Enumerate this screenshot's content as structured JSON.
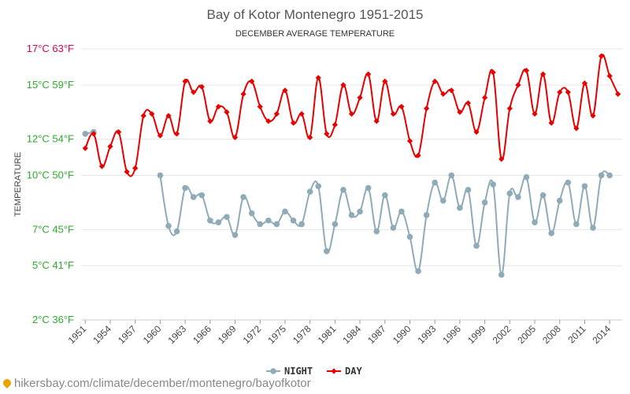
{
  "chart_data": {
    "type": "line",
    "title": "Bay of Kotor Montenegro 1951-2015",
    "subtitle": "DECEMBER AVERAGE TEMPERATURE",
    "ylabel": "TEMPERATURE",
    "ylim": [
      2,
      17
    ],
    "yticks": [
      {
        "value": 2,
        "label": "2°C 36°F",
        "color": "#2eaa2e"
      },
      {
        "value": 5,
        "label": "5°C 41°F",
        "color": "#2eaa2e"
      },
      {
        "value": 7,
        "label": "7°C 45°F",
        "color": "#2eaa2e"
      },
      {
        "value": 10,
        "label": "10°C 50°F",
        "color": "#2eaa2e"
      },
      {
        "value": 12,
        "label": "12°C 54°F",
        "color": "#2eaa2e"
      },
      {
        "value": 15,
        "label": "15°C 59°F",
        "color": "#2eaa2e"
      },
      {
        "value": 17,
        "label": "17°C 63°F",
        "color": "#e0004a"
      }
    ],
    "xlim": [
      1950.5,
      2015.5
    ],
    "xticks": [
      1951,
      1954,
      1957,
      1960,
      1963,
      1966,
      1969,
      1972,
      1975,
      1978,
      1981,
      1984,
      1987,
      1990,
      1993,
      1996,
      1999,
      2002,
      2005,
      2008,
      2011,
      2014
    ],
    "legend_position": "bottom",
    "grid": true,
    "series": [
      {
        "name": "NIGHT",
        "color": "#8fabb8",
        "marker": "circle",
        "points": [
          [
            1951,
            12.3
          ],
          [
            1952,
            12.4
          ],
          [
            1960,
            10.0
          ],
          [
            1961,
            7.2
          ],
          [
            1962,
            6.9
          ],
          [
            1963,
            9.3
          ],
          [
            1964,
            8.8
          ],
          [
            1965,
            8.9
          ],
          [
            1966,
            7.5
          ],
          [
            1967,
            7.4
          ],
          [
            1968,
            7.7
          ],
          [
            1969,
            6.7
          ],
          [
            1970,
            8.8
          ],
          [
            1971,
            7.9
          ],
          [
            1972,
            7.3
          ],
          [
            1973,
            7.5
          ],
          [
            1974,
            7.3
          ],
          [
            1975,
            8.0
          ],
          [
            1976,
            7.5
          ],
          [
            1977,
            7.3
          ],
          [
            1978,
            9.1
          ],
          [
            1979,
            9.4
          ],
          [
            1980,
            5.8
          ],
          [
            1981,
            7.3
          ],
          [
            1982,
            9.2
          ],
          [
            1983,
            7.8
          ],
          [
            1984,
            8.0
          ],
          [
            1985,
            9.3
          ],
          [
            1986,
            6.9
          ],
          [
            1987,
            8.9
          ],
          [
            1988,
            7.1
          ],
          [
            1989,
            8.0
          ],
          [
            1990,
            6.6
          ],
          [
            1991,
            4.7
          ],
          [
            1992,
            7.8
          ],
          [
            1993,
            9.6
          ],
          [
            1994,
            8.6
          ],
          [
            1995,
            10.0
          ],
          [
            1996,
            8.2
          ],
          [
            1997,
            9.2
          ],
          [
            1998,
            6.1
          ],
          [
            1999,
            8.5
          ],
          [
            2000,
            9.5
          ],
          [
            2001,
            4.5
          ],
          [
            2002,
            9.0
          ],
          [
            2003,
            8.8
          ],
          [
            2004,
            9.9
          ],
          [
            2005,
            7.4
          ],
          [
            2006,
            8.9
          ],
          [
            2007,
            6.8
          ],
          [
            2008,
            8.6
          ],
          [
            2009,
            9.6
          ],
          [
            2010,
            7.3
          ],
          [
            2011,
            9.4
          ],
          [
            2012,
            7.1
          ],
          [
            2013,
            10.0
          ],
          [
            2014,
            10.0
          ]
        ]
      },
      {
        "name": "DAY",
        "color": "#e60000",
        "marker": "diamond",
        "points": [
          [
            1951,
            11.5
          ],
          [
            1952,
            12.3
          ],
          [
            1953,
            10.5
          ],
          [
            1954,
            11.6
          ],
          [
            1955,
            12.4
          ],
          [
            1956,
            10.2
          ],
          [
            1957,
            10.4
          ],
          [
            1958,
            13.3
          ],
          [
            1959,
            13.4
          ],
          [
            1960,
            12.2
          ],
          [
            1961,
            13.3
          ],
          [
            1962,
            12.3
          ],
          [
            1963,
            15.2
          ],
          [
            1964,
            14.6
          ],
          [
            1965,
            14.9
          ],
          [
            1966,
            13.0
          ],
          [
            1967,
            13.8
          ],
          [
            1968,
            13.5
          ],
          [
            1969,
            12.1
          ],
          [
            1970,
            14.5
          ],
          [
            1971,
            15.2
          ],
          [
            1972,
            13.8
          ],
          [
            1973,
            13.0
          ],
          [
            1974,
            13.4
          ],
          [
            1975,
            14.7
          ],
          [
            1976,
            12.9
          ],
          [
            1977,
            13.4
          ],
          [
            1978,
            12.1
          ],
          [
            1979,
            15.4
          ],
          [
            1980,
            12.3
          ],
          [
            1981,
            12.8
          ],
          [
            1982,
            15.0
          ],
          [
            1983,
            13.4
          ],
          [
            1984,
            14.3
          ],
          [
            1985,
            15.6
          ],
          [
            1986,
            13.0
          ],
          [
            1987,
            15.2
          ],
          [
            1988,
            13.4
          ],
          [
            1989,
            13.8
          ],
          [
            1990,
            11.9
          ],
          [
            1991,
            11.1
          ],
          [
            1992,
            13.7
          ],
          [
            1993,
            15.2
          ],
          [
            1994,
            14.5
          ],
          [
            1995,
            14.7
          ],
          [
            1996,
            13.5
          ],
          [
            1997,
            14.0
          ],
          [
            1998,
            12.4
          ],
          [
            1999,
            14.3
          ],
          [
            2000,
            15.7
          ],
          [
            2001,
            10.9
          ],
          [
            2002,
            13.7
          ],
          [
            2003,
            15.0
          ],
          [
            2004,
            15.8
          ],
          [
            2005,
            13.4
          ],
          [
            2006,
            15.6
          ],
          [
            2007,
            12.9
          ],
          [
            2008,
            14.6
          ],
          [
            2009,
            14.6
          ],
          [
            2010,
            12.6
          ],
          [
            2011,
            15.1
          ],
          [
            2012,
            13.3
          ],
          [
            2013,
            16.6
          ],
          [
            2014,
            15.5
          ],
          [
            2015,
            14.5
          ]
        ]
      }
    ]
  },
  "footer": {
    "text": "hikersbay.com/climate/december/montenegro/bayofkotor",
    "pin_icon": "location-pin-icon"
  }
}
